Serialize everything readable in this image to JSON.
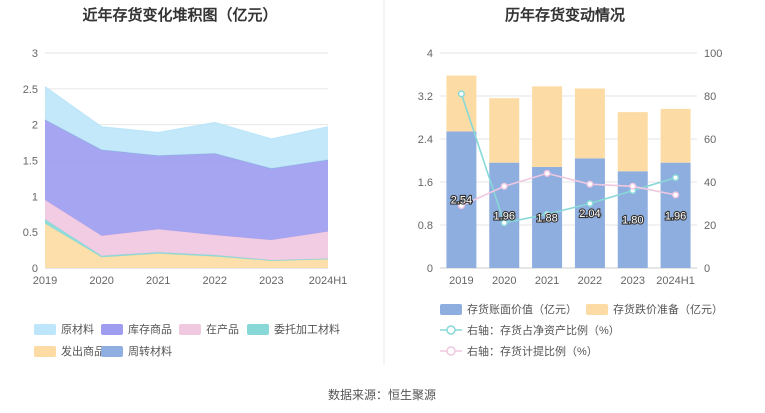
{
  "chart_data": [
    {
      "type": "area",
      "stacked": true,
      "title": "近年存货变化堆积图（亿元）",
      "categories": [
        "2019",
        "2020",
        "2021",
        "2022",
        "2023",
        "2024H1"
      ],
      "ylim": [
        0,
        3
      ],
      "yticks": [
        "0",
        "0.5",
        "1",
        "1.5",
        "2",
        "2.5",
        "3"
      ],
      "grid": true,
      "legend_position": "bottom",
      "series": [
        {
          "name": "发出商品",
          "color": "#fcdca4",
          "values": [
            0.62,
            0.15,
            0.2,
            0.16,
            0.1,
            0.12
          ]
        },
        {
          "name": "委托加工材料",
          "color": "#88d8d8",
          "values": [
            0.06,
            0.02,
            0.02,
            0.02,
            0.01,
            0.01
          ]
        },
        {
          "name": "在产品",
          "color": "#f0c8e0",
          "values": [
            0.27,
            0.28,
            0.32,
            0.28,
            0.28,
            0.38
          ]
        },
        {
          "name": "库存商品",
          "color": "#9e9df0",
          "values": [
            1.12,
            1.2,
            1.03,
            1.14,
            1.0,
            1.0
          ]
        },
        {
          "name": "周转材料",
          "color": "#8eafe0",
          "values": [
            0.0,
            0.0,
            0.0,
            0.0,
            0.0,
            0.0
          ]
        },
        {
          "name": "原材料",
          "color": "#bde6fa",
          "values": [
            0.46,
            0.32,
            0.32,
            0.43,
            0.41,
            0.46
          ]
        }
      ],
      "legend_order": [
        "原材料",
        "库存商品",
        "在产品",
        "委托加工材料",
        "发出商品",
        "周转材料"
      ]
    },
    {
      "type": "bar",
      "stacked": true,
      "title": "历年存货变动情况",
      "categories": [
        "2019",
        "2020",
        "2021",
        "2022",
        "2023",
        "2024H1"
      ],
      "ylim": [
        0,
        4
      ],
      "yticks": [
        "0",
        "0.8",
        "1.6",
        "2.4",
        "3.2",
        "4"
      ],
      "y2lim": [
        0,
        100
      ],
      "y2ticks": [
        "0",
        "20",
        "40",
        "60",
        "80",
        "100"
      ],
      "grid": true,
      "series": [
        {
          "name": "存货账面价值（亿元）",
          "kind": "bar",
          "color": "#8eaedf",
          "values": [
            2.54,
            1.96,
            1.88,
            2.04,
            1.8,
            1.96
          ],
          "labels": [
            "2.54",
            "1.96",
            "1.88",
            "2.04",
            "1.80",
            "1.96"
          ]
        },
        {
          "name": "存货跌价准备（亿元）",
          "kind": "bar",
          "color": "#fcdca4",
          "values": [
            1.04,
            1.2,
            1.5,
            1.3,
            1.1,
            1.0
          ]
        },
        {
          "name": "右轴：存货占净资产比例（%）",
          "kind": "line",
          "axis": "right",
          "color": "#88d8d8",
          "values": [
            81,
            21,
            25,
            30,
            36,
            42
          ]
        },
        {
          "name": "右轴：存货计提比例（%）",
          "kind": "line",
          "axis": "right",
          "color": "#f0c8e0",
          "values": [
            29,
            38,
            44,
            39,
            38,
            34
          ]
        }
      ]
    }
  ],
  "source_label": "数据来源：恒生聚源"
}
